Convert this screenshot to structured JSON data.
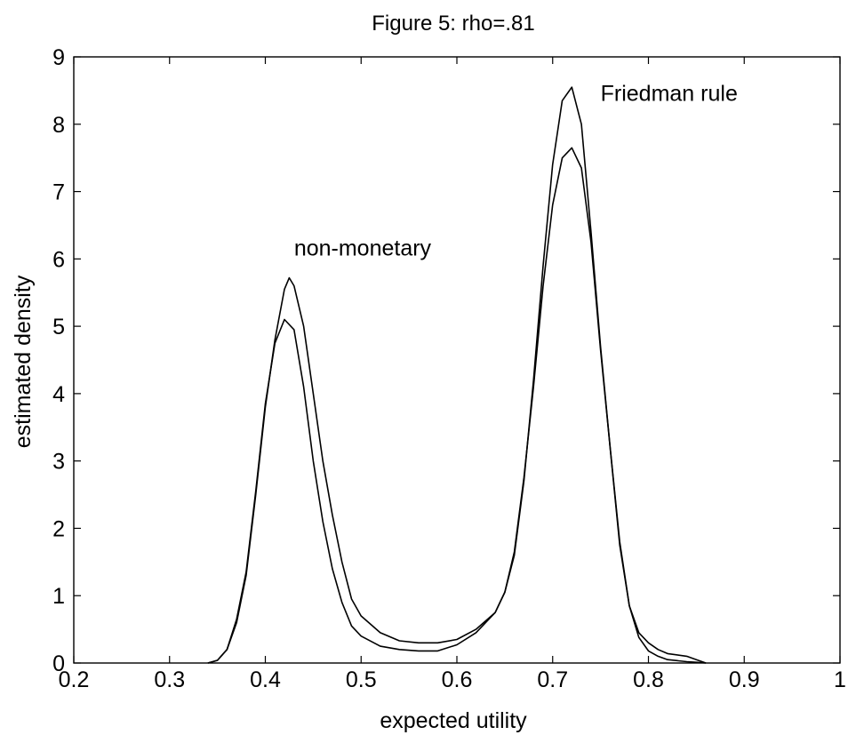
{
  "chart_data": {
    "type": "line",
    "title": "Figure 5: rho=.81",
    "xlabel": "expected utility",
    "ylabel": "estimated density",
    "xlim": [
      0.2,
      1
    ],
    "ylim": [
      0,
      9
    ],
    "xticks": [
      0.2,
      0.3,
      0.4,
      0.5,
      0.6,
      0.7,
      0.8,
      0.9,
      1
    ],
    "xtick_labels": [
      "0.2",
      "0.3",
      "0.4",
      "0.5",
      "0.6",
      "0.7",
      "0.8",
      "0.9",
      "1"
    ],
    "yticks": [
      0,
      1,
      2,
      3,
      4,
      5,
      6,
      7,
      8,
      9
    ],
    "ytick_labels": [
      "0",
      "1",
      "2",
      "3",
      "4",
      "5",
      "6",
      "7",
      "8",
      "9"
    ],
    "grid": false,
    "legend": "none",
    "line_color": "#000000",
    "annotations": [
      {
        "text": "non-monetary",
        "x": 0.43,
        "y": 6.05
      },
      {
        "text": "Friedman rule",
        "x": 0.75,
        "y": 8.35
      }
    ],
    "series": [
      {
        "x": [
          0.34,
          0.35,
          0.36,
          0.37,
          0.38,
          0.39,
          0.4,
          0.41,
          0.42,
          0.425,
          0.43,
          0.44,
          0.45,
          0.46,
          0.47,
          0.48,
          0.49,
          0.5,
          0.52,
          0.54,
          0.56,
          0.58,
          0.6,
          0.62,
          0.64,
          0.65,
          0.66,
          0.67,
          0.68,
          0.69,
          0.7,
          0.71,
          0.72,
          0.73,
          0.74,
          0.75,
          0.76,
          0.77,
          0.78,
          0.79,
          0.8,
          0.81,
          0.82,
          0.84,
          0.85,
          0.86
        ],
        "y": [
          0,
          0.04,
          0.2,
          0.6,
          1.3,
          2.5,
          3.8,
          4.8,
          5.55,
          5.72,
          5.6,
          5.0,
          4.0,
          3.0,
          2.2,
          1.5,
          0.95,
          0.7,
          0.45,
          0.33,
          0.3,
          0.3,
          0.35,
          0.5,
          0.75,
          1.05,
          1.6,
          2.7,
          4.2,
          5.9,
          7.4,
          8.35,
          8.55,
          8.0,
          6.4,
          4.7,
          3.2,
          1.75,
          0.85,
          0.45,
          0.3,
          0.2,
          0.14,
          0.1,
          0.05,
          0
        ]
      },
      {
        "x": [
          0.34,
          0.35,
          0.36,
          0.37,
          0.38,
          0.39,
          0.4,
          0.41,
          0.42,
          0.43,
          0.44,
          0.45,
          0.46,
          0.47,
          0.48,
          0.49,
          0.5,
          0.52,
          0.54,
          0.56,
          0.58,
          0.6,
          0.62,
          0.64,
          0.65,
          0.66,
          0.67,
          0.68,
          0.69,
          0.7,
          0.71,
          0.72,
          0.73,
          0.74,
          0.75,
          0.76,
          0.77,
          0.78,
          0.79,
          0.8,
          0.81,
          0.82,
          0.84,
          0.85,
          0.86
        ],
        "y": [
          0,
          0.04,
          0.2,
          0.65,
          1.35,
          2.55,
          3.85,
          4.75,
          5.1,
          4.95,
          4.1,
          3.0,
          2.1,
          1.4,
          0.9,
          0.55,
          0.4,
          0.25,
          0.2,
          0.18,
          0.18,
          0.27,
          0.45,
          0.75,
          1.05,
          1.65,
          2.75,
          4.1,
          5.6,
          6.8,
          7.5,
          7.65,
          7.35,
          6.25,
          4.65,
          3.2,
          1.8,
          0.85,
          0.38,
          0.18,
          0.1,
          0.05,
          0.02,
          0.01,
          0
        ]
      }
    ]
  }
}
